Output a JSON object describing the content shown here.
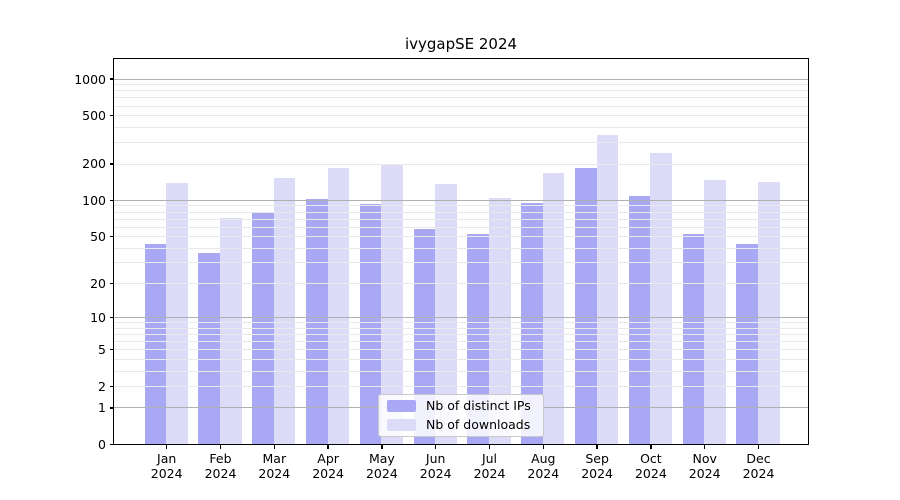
{
  "chart_data": {
    "type": "bar",
    "title": "ivygapSE 2024",
    "year_label": "2024",
    "categories": [
      "Jan",
      "Feb",
      "Mar",
      "Apr",
      "May",
      "Jun",
      "Jul",
      "Aug",
      "Sep",
      "Oct",
      "Nov",
      "Dec"
    ],
    "series": [
      {
        "name": "Nb of distinct IPs",
        "color": "#a8a8f5",
        "values": [
          43,
          36,
          78,
          102,
          92,
          57,
          52,
          95,
          185,
          108,
          52,
          43
        ]
      },
      {
        "name": "Nb of downloads",
        "color": "#dcdcf9",
        "values": [
          138,
          71,
          152,
          184,
          199,
          135,
          103,
          167,
          345,
          243,
          146,
          141
        ]
      }
    ],
    "yscale": "log1p",
    "yticks": [
      0,
      1,
      2,
      5,
      10,
      20,
      50,
      100,
      200,
      500,
      1000
    ],
    "ylim": [
      0,
      1450
    ],
    "grid": {
      "major_ticks": [
        1,
        10,
        100,
        1000
      ],
      "major_color": "#b0b0b0",
      "minor_color": "#e9e9e9"
    },
    "legend": {
      "position": "bottom-center"
    }
  }
}
